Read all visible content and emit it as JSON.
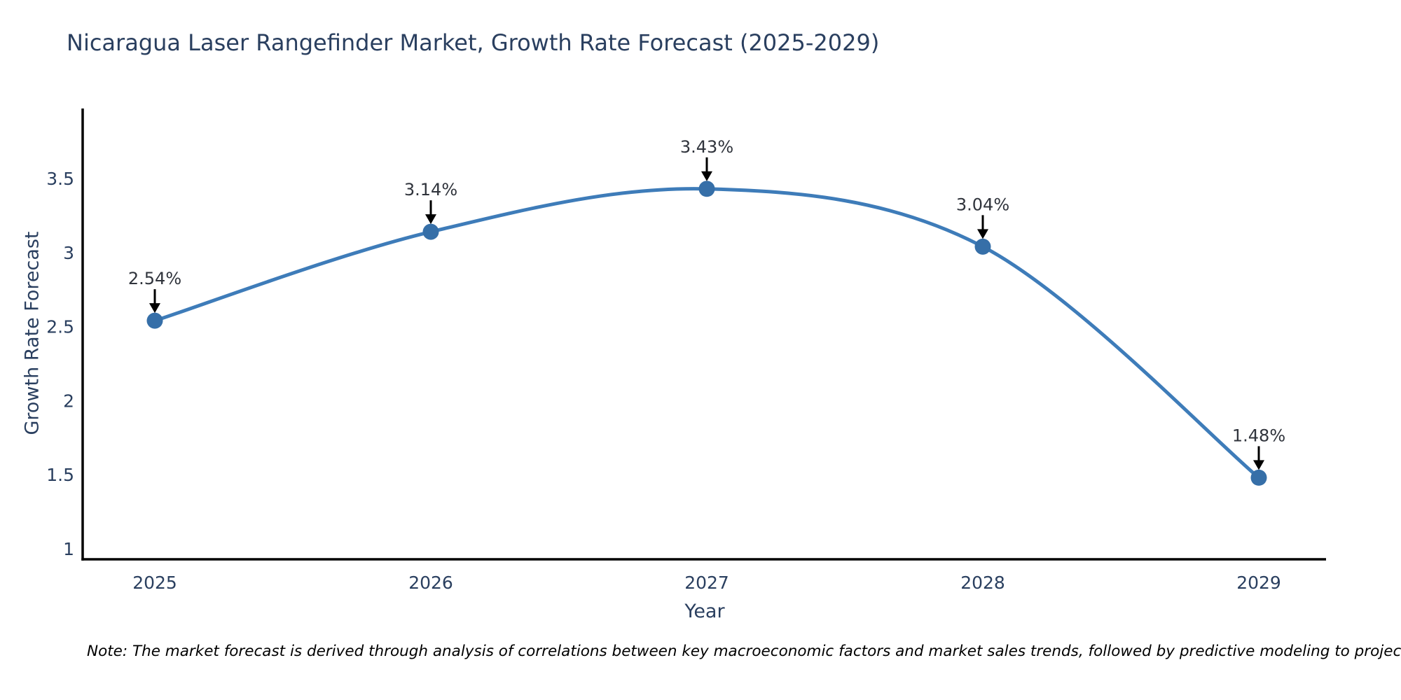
{
  "page": {
    "title": "Nicaragua Laser Rangefinder Market, Growth Rate Forecast (2025-2029)",
    "note": "Note: The market forecast is derived through analysis of correlations between key macroeconomic factors and market sales trends, followed by predictive modeling to project future sales"
  },
  "chart_data": {
    "type": "line",
    "title": "Nicaragua Laser Rangefinder Market, Growth Rate Forecast (2025-2029)",
    "x": [
      2025,
      2026,
      2027,
      2028,
      2029
    ],
    "xticks": [
      "2025",
      "2026",
      "2027",
      "2028",
      "2029"
    ],
    "series": [
      {
        "name": "Growth Rate Forecast",
        "values": [
          2.54,
          3.14,
          3.43,
          3.04,
          1.48
        ],
        "point_labels": [
          "2.54%",
          "3.14%",
          "3.43%",
          "3.04%",
          "1.48%"
        ]
      }
    ],
    "xlabel": "Year",
    "ylabel": "Growth Rate Forecast",
    "yticks": [
      1,
      1.5,
      2,
      2.5,
      3,
      3.5
    ],
    "ylim": [
      0.93,
      3.68
    ],
    "grid": false,
    "legend": "none",
    "curve": "spline",
    "annotation_arrows": "down-to-point",
    "colors": {
      "line": "#3E7CB9",
      "marker": "#366FA8",
      "title": "#2a3f5f",
      "tick": "#2a3f5f",
      "axis": "#000000",
      "point_label": "#30343c",
      "arrow": "#000000",
      "note": "#000000"
    }
  }
}
